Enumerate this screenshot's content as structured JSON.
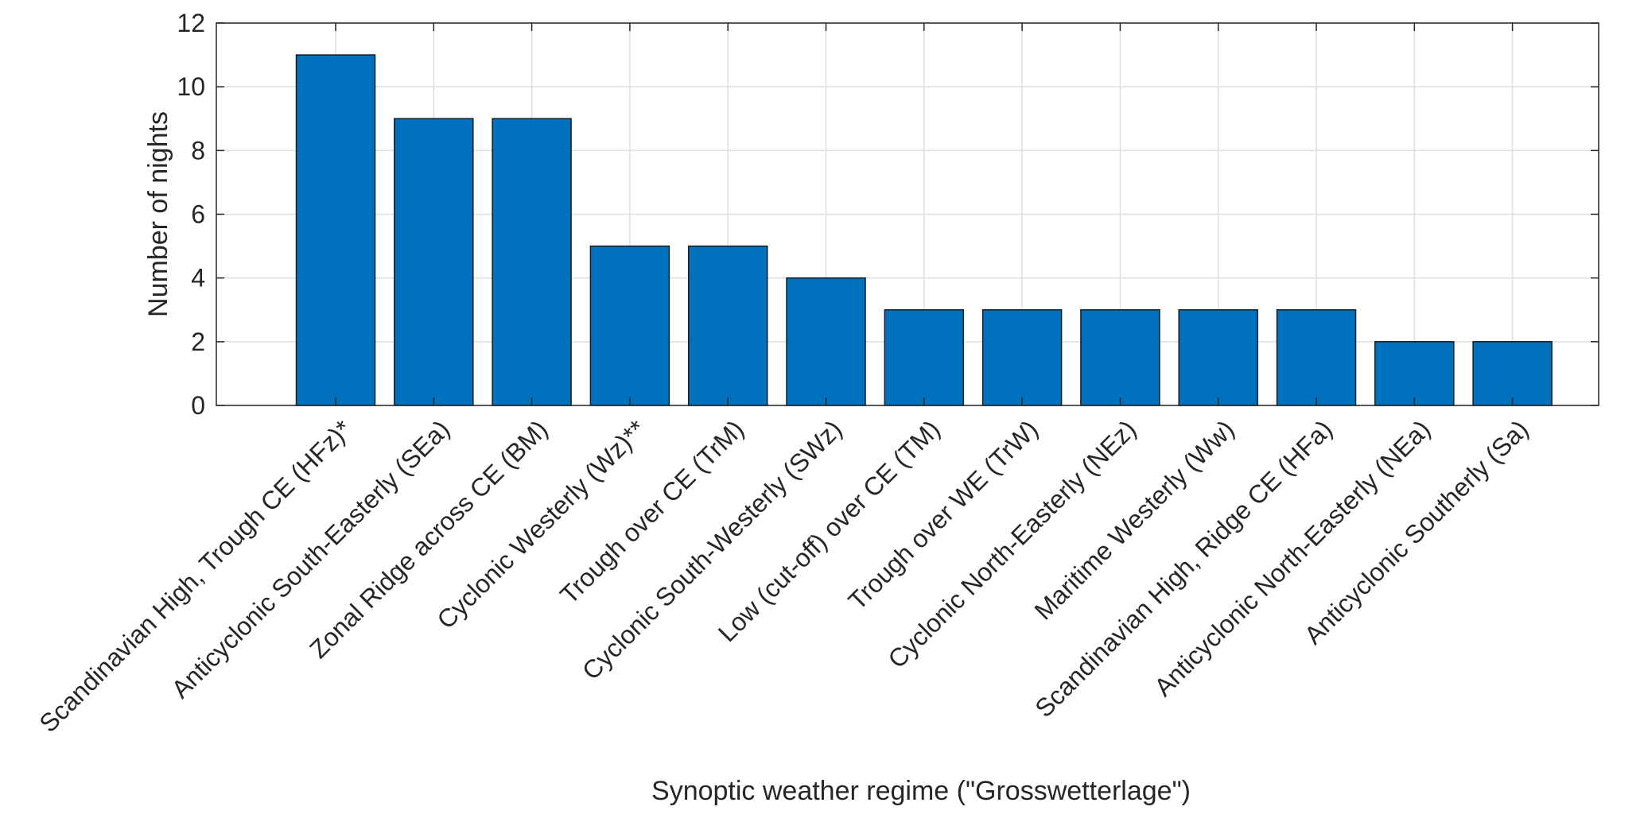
{
  "chart_data": {
    "type": "bar",
    "categories": [
      "Scandinavian High, Trough CE (HFz)*",
      "Anticyclonic South-Easterly (SEa)",
      "Zonal Ridge across CE (BM)",
      "Cyclonic Westerly (Wz)**",
      "Trough over CE (TrM)",
      "Cyclonic South-Westerly (SWz)",
      "Low (cut-off) over CE (TM)",
      "Trough over WE (TrW)",
      "Cyclonic North-Easterly (NEz)",
      "Maritime Westerly (Ww)",
      "Scandinavian High, Ridge CE (HFa)",
      "Anticyclonic North-Easterly (NEa)",
      "Anticyclonic Southerly (Sa)"
    ],
    "values": [
      11,
      9,
      9,
      5,
      5,
      4,
      3,
      3,
      3,
      3,
      3,
      2,
      2
    ],
    "xlabel": "Synoptic weather regime (\"Grosswetterlage\")",
    "ylabel": "Number of nights",
    "ylim": [
      0,
      12
    ],
    "yticks": [
      "0",
      "2",
      "4",
      "6",
      "8",
      "10",
      "12"
    ],
    "grid": true,
    "bar_color": "#0072bd",
    "edge_color": "#1a1a1a"
  }
}
